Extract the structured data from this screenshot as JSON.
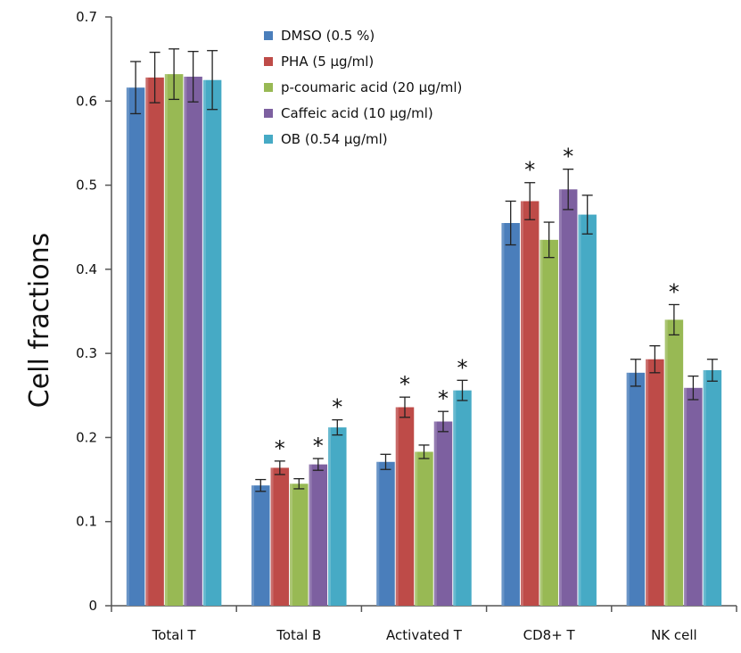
{
  "chart_data": {
    "type": "bar",
    "title": "",
    "xlabel": "",
    "ylabel": "Cell fractions",
    "ylim": [
      0,
      0.7
    ],
    "yticks": [
      "0",
      "0.1",
      "0.2",
      "0.3",
      "0.4",
      "0.5",
      "0.6",
      "0.7"
    ],
    "categories": [
      "Total T",
      "Total B",
      "Activated T",
      "CD8+ T",
      "NK cell"
    ],
    "legend_position": "top-right",
    "grid": false,
    "series": [
      {
        "name": "DMSO (0.5 %)",
        "color": "#4a7ebb",
        "values": [
          0.616,
          0.143,
          0.171,
          0.455,
          0.277
        ],
        "errors": [
          0.031,
          0.007,
          0.009,
          0.026,
          0.016
        ],
        "significant": [
          false,
          false,
          false,
          false,
          false
        ]
      },
      {
        "name": "PHA (5 μg/ml)",
        "color": "#be4b48",
        "values": [
          0.628,
          0.164,
          0.236,
          0.481,
          0.293
        ],
        "errors": [
          0.03,
          0.008,
          0.012,
          0.022,
          0.016
        ],
        "significant": [
          false,
          true,
          true,
          true,
          false
        ]
      },
      {
        "name": "p-coumaric acid (20 μg/ml)",
        "color": "#98b954",
        "values": [
          0.632,
          0.145,
          0.183,
          0.435,
          0.34
        ],
        "errors": [
          0.03,
          0.006,
          0.008,
          0.021,
          0.018
        ],
        "significant": [
          false,
          false,
          false,
          false,
          true
        ]
      },
      {
        "name": "Caffeic acid (10 μg/ml)",
        "color": "#7d60a0",
        "values": [
          0.629,
          0.168,
          0.219,
          0.495,
          0.259
        ],
        "errors": [
          0.03,
          0.007,
          0.012,
          0.024,
          0.014
        ],
        "significant": [
          false,
          true,
          true,
          true,
          false
        ]
      },
      {
        "name": "OB (0.54 μg/ml)",
        "color": "#46aac5",
        "values": [
          0.625,
          0.212,
          0.256,
          0.465,
          0.28
        ],
        "errors": [
          0.035,
          0.009,
          0.012,
          0.023,
          0.013
        ],
        "significant": [
          false,
          true,
          true,
          false,
          false
        ]
      }
    ],
    "annotation_symbol": "*"
  }
}
